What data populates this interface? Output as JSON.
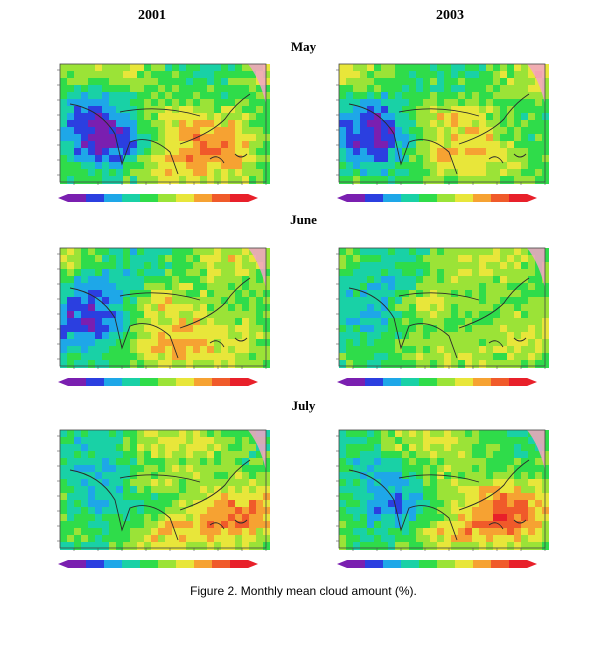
{
  "columns": [
    "2001",
    "2003"
  ],
  "rows": [
    "May",
    "June",
    "July"
  ],
  "caption": "Figure 2.  Monthly mean cloud amount (%).",
  "colors": {
    "scale": [
      "#7a1fb0",
      "#2b3fe0",
      "#1ea7e8",
      "#19d1a6",
      "#2fdc4a",
      "#9be337",
      "#e8e63a",
      "#f6a232",
      "#f05a2a",
      "#e8202a"
    ],
    "land_outline": "#2a2a2a",
    "frame": "#444444"
  },
  "panels": [
    {
      "col": "2001",
      "row": "May",
      "purple": 0.8,
      "red": 0.45
    },
    {
      "col": "2003",
      "row": "May",
      "purple": 0.7,
      "red": 0.3
    },
    {
      "col": "2001",
      "row": "June",
      "purple": 0.8,
      "red": 0.55
    },
    {
      "col": "2003",
      "row": "June",
      "purple": 0.55,
      "red": 0.35
    },
    {
      "col": "2001",
      "row": "July",
      "purple": 0.6,
      "red": 0.65
    },
    {
      "col": "2003",
      "row": "July",
      "purple": 0.6,
      "red": 0.6
    }
  ]
}
